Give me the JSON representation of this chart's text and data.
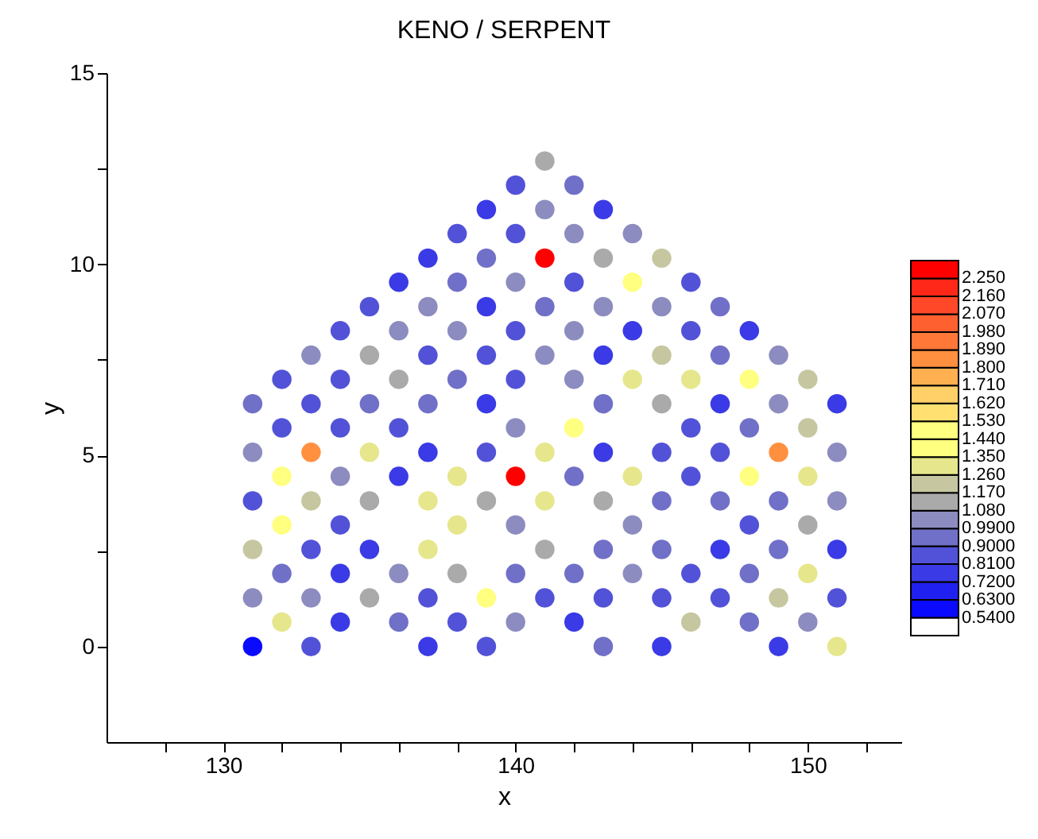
{
  "chart_data": {
    "type": "scatter",
    "title": "KENO / SERPENT",
    "xlabel": "x",
    "ylabel": "y",
    "clabel": null,
    "marker": "circle",
    "grid": false,
    "clim": [
      0.45,
      2.34
    ],
    "xlim": [
      126,
      153.2
    ],
    "xticks": [
      {
        "value": 128,
        "label": null
      },
      130,
      {
        "value": 132,
        "label": null
      },
      {
        "value": 134,
        "label": null
      },
      {
        "value": 136,
        "label": null
      },
      {
        "value": 138,
        "label": null
      },
      140,
      {
        "value": 142,
        "label": null
      },
      {
        "value": 144,
        "label": null
      },
      {
        "value": 146,
        "label": null
      },
      {
        "value": 148,
        "label": null
      },
      150,
      {
        "value": 152,
        "label": null
      }
    ],
    "ylim": [
      -2.5,
      15
    ],
    "yticks": [
      0,
      {
        "value": 2.5,
        "label": null
      },
      5,
      {
        "value": 7.5,
        "label": null
      },
      10,
      {
        "value": 12.5,
        "label": null
      },
      15
    ],
    "cticks": [
      {
        "value": 0.54,
        "label": "0.5400"
      },
      {
        "value": 0.63,
        "label": "0.6300"
      },
      {
        "value": 0.72,
        "label": "0.7200"
      },
      {
        "value": 0.81,
        "label": "0.8100"
      },
      {
        "value": 0.9,
        "label": "0.9000"
      },
      {
        "value": 0.99,
        "label": "0.9900"
      },
      {
        "value": 1.08,
        "label": "1.080"
      },
      {
        "value": 1.17,
        "label": "1.170"
      },
      {
        "value": 1.26,
        "label": "1.260"
      },
      {
        "value": 1.35,
        "label": "1.350"
      },
      {
        "value": 1.44,
        "label": "1.440"
      },
      {
        "value": 1.53,
        "label": "1.530"
      },
      {
        "value": 1.62,
        "label": "1.620"
      },
      {
        "value": 1.71,
        "label": "1.710"
      },
      {
        "value": 1.8,
        "label": "1.800"
      },
      {
        "value": 1.89,
        "label": "1.890"
      },
      {
        "value": 1.98,
        "label": "1.980"
      },
      {
        "value": 2.07,
        "label": "2.070"
      },
      {
        "value": 2.16,
        "label": "2.160"
      },
      {
        "value": 2.25,
        "label": "2.250"
      }
    ],
    "series": [
      {
        "x": [
          131,
          133,
          137,
          139,
          143,
          145,
          149,
          151,
          132,
          134,
          136,
          138,
          140,
          142,
          146,
          148,
          150,
          131,
          133,
          135,
          137,
          139,
          141,
          143,
          145,
          147,
          149,
          151,
          132,
          134,
          136,
          138,
          140,
          142,
          144,
          146,
          148,
          150,
          131,
          133,
          135,
          137,
          141,
          143,
          145,
          147,
          149,
          151,
          132,
          134,
          138,
          140,
          144,
          148,
          150,
          131,
          133,
          135,
          137,
          139,
          141,
          143,
          145,
          147,
          149,
          151,
          132,
          134,
          136,
          138,
          140,
          142,
          144,
          146,
          148,
          150,
          131,
          133,
          135,
          137,
          139,
          141,
          143,
          145,
          147,
          149,
          151,
          132,
          134,
          136,
          140,
          142,
          146,
          148,
          150,
          131,
          133,
          135,
          137,
          139,
          143,
          145,
          147,
          149,
          151,
          132,
          134,
          136,
          138,
          140,
          142,
          144,
          146,
          148,
          150,
          133,
          135,
          137,
          139,
          141,
          143,
          145,
          147,
          149,
          134,
          136,
          138,
          140,
          142,
          144,
          146,
          148,
          135,
          137,
          139,
          141,
          143,
          145,
          147,
          136,
          138,
          140,
          142,
          144,
          146,
          137,
          139,
          141,
          143,
          145,
          138,
          140,
          142,
          144,
          139,
          141,
          143,
          140,
          142,
          141
        ],
        "values": [
          0,
          0,
          0,
          0,
          0,
          0,
          0,
          0,
          0.64,
          0.64,
          0.64,
          0.64,
          0.64,
          0.64,
          0.64,
          0.64,
          0.64,
          1.27,
          1.27,
          1.27,
          1.27,
          1.27,
          1.27,
          1.27,
          1.27,
          1.27,
          1.27,
          1.27,
          1.91,
          1.91,
          1.91,
          1.91,
          1.91,
          1.91,
          1.91,
          1.91,
          1.91,
          1.91,
          2.54,
          2.54,
          2.54,
          2.54,
          2.54,
          2.54,
          2.54,
          2.54,
          2.54,
          2.54,
          3.18,
          3.18,
          3.18,
          3.18,
          3.18,
          3.18,
          3.18,
          3.81,
          3.81,
          3.81,
          3.81,
          3.81,
          3.81,
          3.81,
          3.81,
          3.81,
          3.81,
          3.81,
          4.45,
          4.45,
          4.45,
          4.45,
          4.45,
          4.45,
          4.45,
          4.45,
          4.45,
          4.45,
          5.08,
          5.08,
          5.08,
          5.08,
          5.08,
          5.08,
          5.08,
          5.08,
          5.08,
          5.08,
          5.08,
          5.72,
          5.72,
          5.72,
          5.72,
          5.72,
          5.72,
          5.72,
          5.72,
          6.35,
          6.35,
          6.35,
          6.35,
          6.35,
          6.35,
          6.35,
          6.35,
          6.35,
          6.35,
          6.99,
          6.99,
          6.99,
          6.99,
          6.99,
          6.99,
          6.99,
          6.99,
          6.99,
          6.99,
          7.62,
          7.62,
          7.62,
          7.62,
          7.62,
          7.62,
          7.62,
          7.62,
          7.62,
          8.26,
          8.26,
          8.26,
          8.26,
          8.26,
          8.26,
          8.26,
          8.26,
          8.89,
          8.89,
          8.89,
          8.89,
          8.89,
          8.89,
          8.89,
          9.53,
          9.53,
          9.53,
          9.53,
          9.53,
          9.53,
          10.16,
          10.16,
          10.16,
          10.16,
          10.16,
          10.8,
          10.8,
          10.8,
          10.8,
          11.43,
          11.43,
          11.43,
          12.07,
          12.07,
          12.7
        ],
        "cvalues": [
          0.58,
          0.85,
          0.76,
          0.85,
          0.94,
          0.76,
          0.76,
          1.3,
          1.3,
          0.76,
          0.94,
          0.85,
          1.03,
          0.76,
          1.21,
          0.94,
          1.03,
          1.03,
          1.03,
          1.12,
          0.85,
          1.4,
          0.85,
          0.85,
          0.85,
          0.85,
          1.21,
          0.85,
          0.94,
          0.76,
          1.03,
          1.12,
          0.94,
          0.94,
          1.03,
          0.85,
          0.94,
          1.3,
          1.21,
          0.85,
          0.76,
          1.3,
          1.12,
          0.94,
          0.94,
          0.76,
          0.94,
          0.76,
          1.4,
          0.85,
          1.3,
          1.03,
          1.03,
          0.85,
          1.12,
          0.85,
          1.21,
          1.12,
          1.3,
          1.12,
          1.3,
          1.12,
          0.94,
          0.94,
          0.94,
          1.03,
          1.4,
          1.03,
          0.76,
          1.3,
          2.3,
          0.94,
          1.3,
          0.85,
          1.4,
          1.3,
          1.03,
          1.84,
          1.3,
          0.76,
          0.85,
          1.3,
          0.76,
          0.85,
          0.85,
          1.84,
          1.03,
          0.85,
          0.85,
          0.85,
          1.03,
          1.4,
          0.85,
          0.94,
          1.21,
          0.94,
          0.85,
          0.94,
          0.94,
          0.76,
          0.94,
          1.12,
          0.76,
          1.03,
          0.76,
          0.85,
          0.85,
          1.12,
          0.94,
          0.85,
          1.03,
          1.3,
          1.3,
          1.4,
          1.21,
          1.03,
          1.12,
          0.85,
          0.85,
          1.03,
          0.76,
          1.21,
          0.94,
          1.03,
          0.85,
          1.03,
          1.03,
          0.85,
          1.03,
          0.76,
          0.85,
          0.76,
          0.85,
          1.03,
          0.76,
          0.94,
          1.03,
          1.03,
          0.94,
          0.76,
          0.94,
          1.03,
          0.85,
          1.4,
          0.85,
          0.76,
          0.94,
          2.3,
          1.12,
          1.21,
          0.85,
          0.85,
          1.03,
          1.03,
          0.76,
          1.03,
          0.76,
          0.85,
          0.94,
          1.12
        ]
      }
    ]
  }
}
